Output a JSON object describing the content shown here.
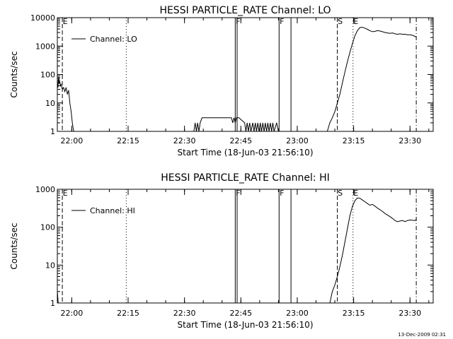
{
  "footer_timestamp": "13-Dec-2009 02:31",
  "chart_data": [
    {
      "type": "line",
      "title": "HESSI PARTICLE_RATE Channel: LO",
      "xlabel": "Start Time (18-Jun-03 21:56:10)",
      "ylabel": "Counts/sec",
      "xlim": [
        "21:56:10",
        "23:36:10"
      ],
      "ylim": [
        1,
        10000
      ],
      "yscale": "log",
      "xticks": [
        "22:00",
        "22:15",
        "22:30",
        "22:45",
        "23:00",
        "23:15",
        "23:30"
      ],
      "yticks": [
        "1",
        "10",
        "100",
        "1000",
        "10000"
      ],
      "legend": {
        "position": "top-left",
        "entries": [
          "Channel: LO"
        ]
      },
      "markers": [
        {
          "label": "E",
          "time": "21:57:30",
          "style": "dashed"
        },
        {
          "label": "",
          "time": "22:14:30",
          "style": "dotted"
        },
        {
          "label": "F",
          "time": "22:43:30",
          "style": "solid"
        },
        {
          "label": "",
          "time": "22:44:00",
          "style": "solid"
        },
        {
          "label": "F",
          "time": "22:55:10",
          "style": "solid"
        },
        {
          "label": "",
          "time": "22:58:20",
          "style": "solid"
        },
        {
          "label": "S",
          "time": "23:10:40",
          "style": "dashed"
        },
        {
          "label": "E",
          "time": "23:14:50",
          "style": "dotted"
        },
        {
          "label": "",
          "time": "23:31:40",
          "style": "dashdot"
        }
      ],
      "series": [
        {
          "name": "Channel: LO",
          "segments": [
            [
              [
                "21:56:10",
                60
              ],
              [
                "21:56:20",
                35
              ],
              [
                "21:56:30",
                80
              ],
              [
                "21:56:40",
                50
              ],
              [
                "21:56:50",
                55
              ],
              [
                "21:57:00",
                40
              ],
              [
                "21:57:10",
                45
              ],
              [
                "21:57:30",
                30
              ],
              [
                "21:57:50",
                35
              ],
              [
                "21:58:10",
                25
              ],
              [
                "21:58:30",
                35
              ],
              [
                "21:58:50",
                20
              ],
              [
                "21:59:10",
                28
              ],
              [
                "21:59:30",
                10
              ],
              [
                "21:59:50",
                5
              ],
              [
                "22:00:10",
                2
              ],
              [
                "22:00:30",
                1
              ]
            ],
            [
              [
                "22:32:30",
                1
              ],
              [
                "22:32:50",
                2
              ],
              [
                "22:33:10",
                1
              ],
              [
                "22:33:30",
                2
              ],
              [
                "22:33:50",
                1
              ],
              [
                "22:34:10",
                2
              ],
              [
                "22:34:40",
                3
              ],
              [
                "22:42:30",
                3
              ],
              [
                "22:42:50",
                2
              ],
              [
                "22:43:10",
                3
              ],
              [
                "22:43:30",
                2
              ],
              [
                "22:43:50",
                3
              ],
              [
                "22:44:30",
                3
              ],
              [
                "22:46:00",
                2
              ],
              [
                "22:46:20",
                1
              ],
              [
                "22:46:40",
                2
              ],
              [
                "22:47:00",
                1
              ],
              [
                "22:47:20",
                2
              ],
              [
                "22:47:40",
                1
              ],
              [
                "22:48:10",
                2
              ],
              [
                "22:48:30",
                1
              ],
              [
                "22:48:50",
                2
              ],
              [
                "22:49:10",
                1
              ],
              [
                "22:49:30",
                2
              ],
              [
                "22:49:50",
                1
              ],
              [
                "22:50:10",
                2
              ],
              [
                "22:50:30",
                1
              ],
              [
                "22:50:50",
                2
              ],
              [
                "22:51:10",
                1
              ],
              [
                "22:51:30",
                2
              ],
              [
                "22:51:50",
                1
              ],
              [
                "22:52:10",
                2
              ],
              [
                "22:52:30",
                1
              ],
              [
                "22:52:50",
                2
              ],
              [
                "22:53:10",
                1
              ],
              [
                "22:53:30",
                2
              ],
              [
                "22:53:50",
                1
              ],
              [
                "22:54:30",
                2
              ],
              [
                "22:55:00",
                1
              ]
            ],
            [
              [
                "23:08:00",
                1
              ],
              [
                "23:08:40",
                2
              ],
              [
                "23:09:20",
                3
              ],
              [
                "23:10:00",
                5
              ],
              [
                "23:10:40",
                10
              ],
              [
                "23:11:20",
                20
              ],
              [
                "23:12:00",
                50
              ],
              [
                "23:12:40",
                120
              ],
              [
                "23:13:20",
                280
              ],
              [
                "23:14:00",
                600
              ],
              [
                "23:14:40",
                1200
              ],
              [
                "23:15:20",
                2300
              ],
              [
                "23:16:00",
                3500
              ],
              [
                "23:16:40",
                4500
              ],
              [
                "23:17:20",
                4600
              ],
              [
                "23:18:00",
                4300
              ],
              [
                "23:18:40",
                3900
              ],
              [
                "23:19:20",
                3500
              ],
              [
                "23:20:00",
                3200
              ],
              [
                "23:20:40",
                3300
              ],
              [
                "23:21:20",
                3500
              ],
              [
                "23:22:00",
                3400
              ],
              [
                "23:22:40",
                3200
              ],
              [
                "23:23:20",
                3000
              ],
              [
                "23:24:00",
                2900
              ],
              [
                "23:24:40",
                2800
              ],
              [
                "23:25:20",
                2900
              ],
              [
                "23:26:00",
                2700
              ],
              [
                "23:26:40",
                2600
              ],
              [
                "23:27:20",
                2700
              ],
              [
                "23:28:00",
                2600
              ],
              [
                "23:28:40",
                2600
              ],
              [
                "23:29:20",
                2500
              ],
              [
                "23:30:00",
                2500
              ],
              [
                "23:30:40",
                2400
              ],
              [
                "23:31:20",
                2200
              ],
              [
                "23:31:40",
                2100
              ]
            ]
          ]
        }
      ]
    },
    {
      "type": "line",
      "title": "HESSI PARTICLE_RATE Channel: HI",
      "xlabel": "Start Time (18-Jun-03 21:56:10)",
      "ylabel": "Counts/sec",
      "xlim": [
        "21:56:10",
        "23:36:10"
      ],
      "ylim": [
        1,
        1000
      ],
      "yscale": "log",
      "xticks": [
        "22:00",
        "22:15",
        "22:30",
        "22:45",
        "23:00",
        "23:15",
        "23:30"
      ],
      "yticks": [
        "1",
        "10",
        "100",
        "1000"
      ],
      "legend": {
        "position": "top-left",
        "entries": [
          "Channel: HI"
        ]
      },
      "markers": [
        {
          "label": "E",
          "time": "21:57:30",
          "style": "dashed"
        },
        {
          "label": "",
          "time": "22:14:30",
          "style": "dotted"
        },
        {
          "label": "F",
          "time": "22:43:30",
          "style": "solid"
        },
        {
          "label": "",
          "time": "22:44:00",
          "style": "solid"
        },
        {
          "label": "F",
          "time": "22:55:10",
          "style": "solid"
        },
        {
          "label": "",
          "time": "22:58:20",
          "style": "solid"
        },
        {
          "label": "S",
          "time": "23:10:40",
          "style": "dashed"
        },
        {
          "label": "E",
          "time": "23:14:50",
          "style": "dotted"
        },
        {
          "label": "",
          "time": "23:31:40",
          "style": "dashdot"
        }
      ],
      "series": [
        {
          "name": "Channel: HI",
          "segments": [
            [
              [
                "21:56:10",
                2
              ],
              [
                "21:56:25",
                1
              ]
            ],
            [
              [
                "23:08:40",
                1
              ],
              [
                "23:09:20",
                2
              ],
              [
                "23:10:00",
                3
              ],
              [
                "23:10:40",
                5
              ],
              [
                "23:11:20",
                9
              ],
              [
                "23:12:00",
                18
              ],
              [
                "23:12:40",
                40
              ],
              [
                "23:13:20",
                90
              ],
              [
                "23:14:00",
                200
              ],
              [
                "23:14:40",
                350
              ],
              [
                "23:15:20",
                500
              ],
              [
                "23:16:00",
                590
              ],
              [
                "23:16:40",
                580
              ],
              [
                "23:17:20",
                520
              ],
              [
                "23:18:00",
                470
              ],
              [
                "23:18:40",
                420
              ],
              [
                "23:19:20",
                380
              ],
              [
                "23:20:00",
                400
              ],
              [
                "23:20:40",
                360
              ],
              [
                "23:21:20",
                320
              ],
              [
                "23:22:00",
                290
              ],
              [
                "23:22:40",
                260
              ],
              [
                "23:23:20",
                230
              ],
              [
                "23:24:00",
                210
              ],
              [
                "23:24:40",
                190
              ],
              [
                "23:25:20",
                170
              ],
              [
                "23:26:00",
                150
              ],
              [
                "23:26:40",
                140
              ],
              [
                "23:27:20",
                145
              ],
              [
                "23:28:00",
                150
              ],
              [
                "23:28:40",
                140
              ],
              [
                "23:29:20",
                150
              ],
              [
                "23:30:00",
                155
              ],
              [
                "23:31:20",
                150
              ],
              [
                "23:31:40",
                160
              ]
            ]
          ]
        }
      ]
    }
  ]
}
